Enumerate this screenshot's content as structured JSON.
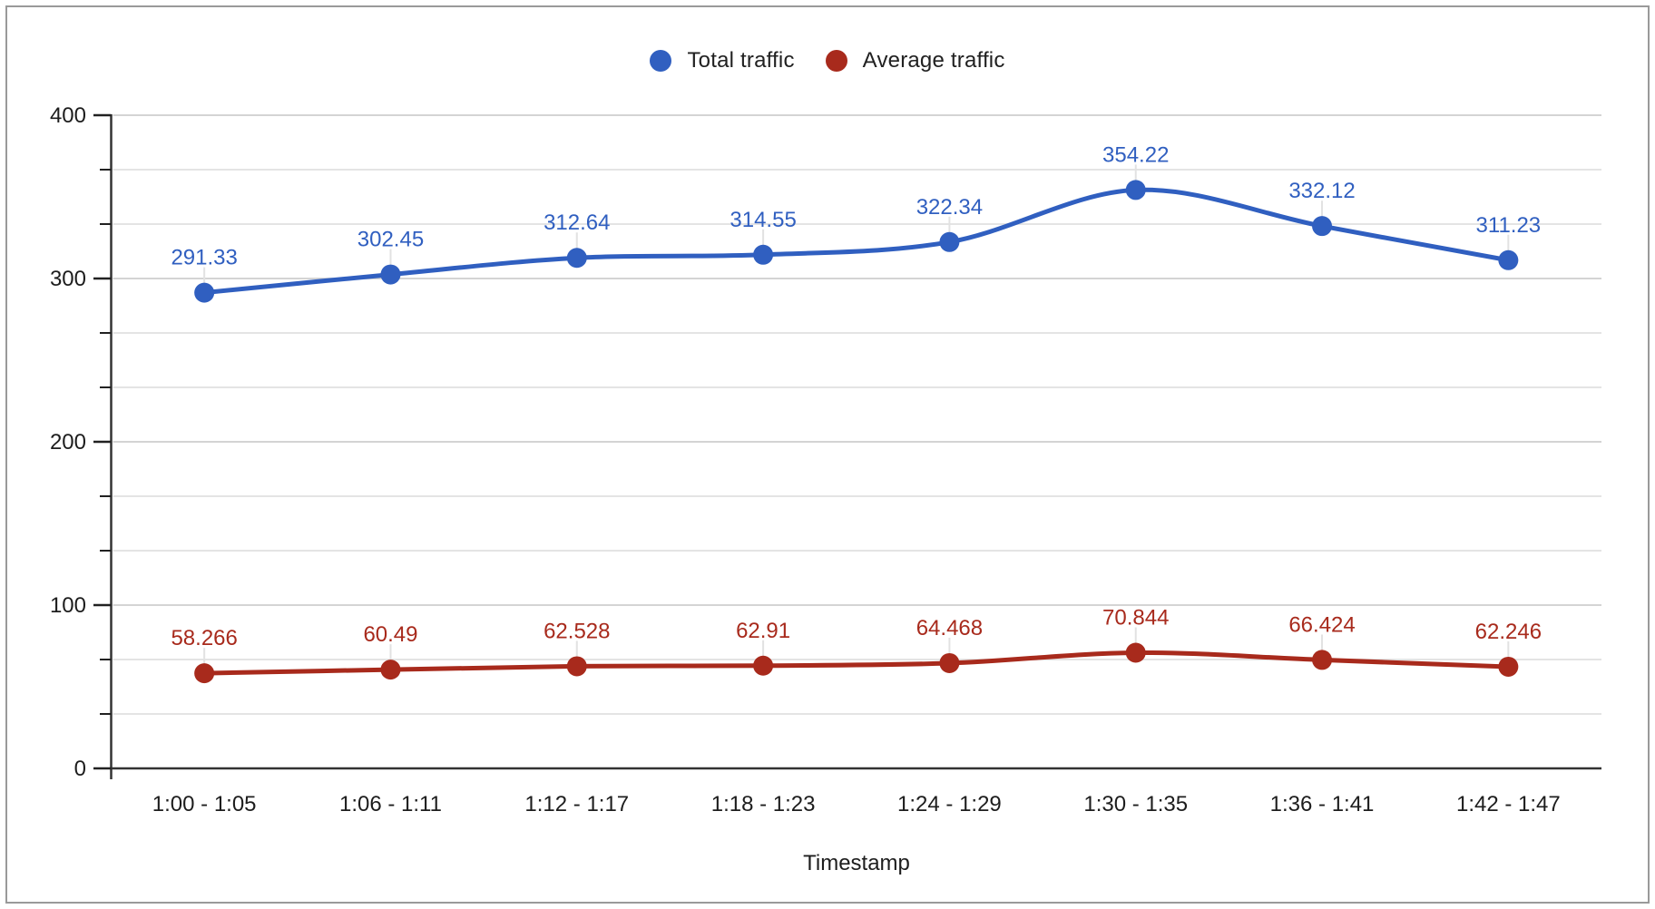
{
  "legend": {
    "items": [
      {
        "label": "Total traffic",
        "color": "#305fc0"
      },
      {
        "label": "Average traffic",
        "color": "#a82a1c"
      }
    ]
  },
  "chart_data": {
    "type": "line",
    "smooth": true,
    "point_labels": true,
    "legend_position": "top",
    "grid": "on",
    "xlabel": "Timestamp",
    "ylabel": "",
    "ylim": [
      0,
      400
    ],
    "y_major_ticks": [
      0,
      100,
      200,
      300,
      400
    ],
    "y_minor_divisions_per_major": 3,
    "categories": [
      "1:00 - 1:05",
      "1:06 - 1:11",
      "1:12 - 1:17",
      "1:18 - 1:23",
      "1:24 - 1:29",
      "1:30 - 1:35",
      "1:36 - 1:41",
      "1:42 - 1:47"
    ],
    "series": [
      {
        "name": "Total traffic",
        "color": "#305fc0",
        "values": [
          291.33,
          302.45,
          312.64,
          314.55,
          322.34,
          354.22,
          332.12,
          311.23
        ],
        "labels": [
          "291.33",
          "302.45",
          "312.64",
          "314.55",
          "322.34",
          "354.22",
          "332.12",
          "311.23"
        ]
      },
      {
        "name": "Average traffic",
        "color": "#a82a1c",
        "values": [
          58.266,
          60.49,
          62.528,
          62.91,
          64.468,
          70.844,
          66.424,
          62.246
        ],
        "labels": [
          "58.266",
          "60.49",
          "62.528",
          "62.91",
          "64.468",
          "70.844",
          "66.424",
          "62.246"
        ]
      }
    ],
    "style": {
      "major_grid_color": "#d4d4d4",
      "minor_grid_color": "#e4e4e4",
      "axis_color": "#333333",
      "label_leader_color": "#e2e2e2",
      "text_color": "#1d1d1d"
    }
  }
}
